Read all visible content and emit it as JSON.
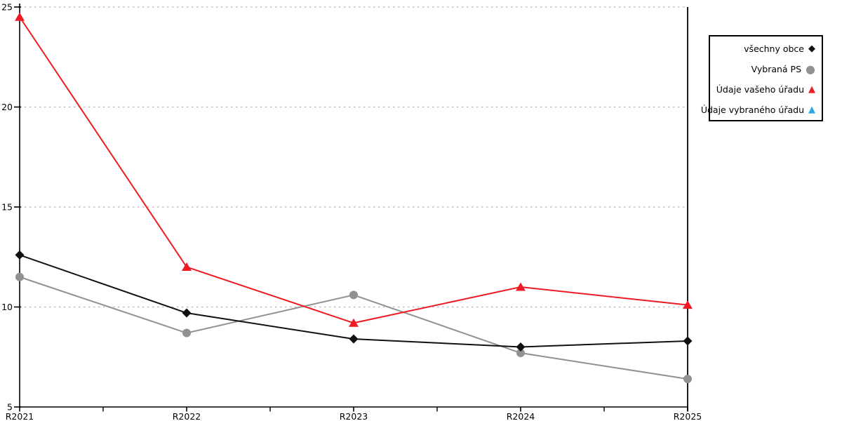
{
  "chart_data": {
    "type": "line",
    "title": "",
    "xlabel": "",
    "ylabel": "",
    "categories": [
      "R2021",
      "R2022",
      "R2023",
      "R2024",
      "R2025"
    ],
    "series": [
      {
        "name": "všechny obce",
        "marker": "diamond",
        "color": "#111111",
        "values": [
          12.6,
          9.7,
          8.4,
          8.0,
          8.3
        ]
      },
      {
        "name": "Vybraná PS",
        "marker": "circle",
        "color": "#919191",
        "values": [
          11.5,
          8.7,
          10.6,
          7.7,
          6.4
        ]
      },
      {
        "name": "Údaje vašeho úřadu",
        "marker": "triangle",
        "color": "#ed1c24",
        "values": [
          24.5,
          12.0,
          9.2,
          11.0,
          10.1
        ]
      },
      {
        "name": "Údaje vybraného úřadu",
        "marker": "triangle",
        "color": "#29abe2",
        "values": []
      }
    ],
    "ylim": [
      5,
      25
    ],
    "y_ticks": [
      5,
      10,
      15,
      20,
      25
    ],
    "grid_values": [
      10,
      15,
      20,
      25
    ],
    "grid_style": "dashed-horizontal",
    "legend_position": "right",
    "colors": {
      "axis": "#000000",
      "gridline": "#b3b3b3",
      "background": "#ffffff"
    }
  }
}
